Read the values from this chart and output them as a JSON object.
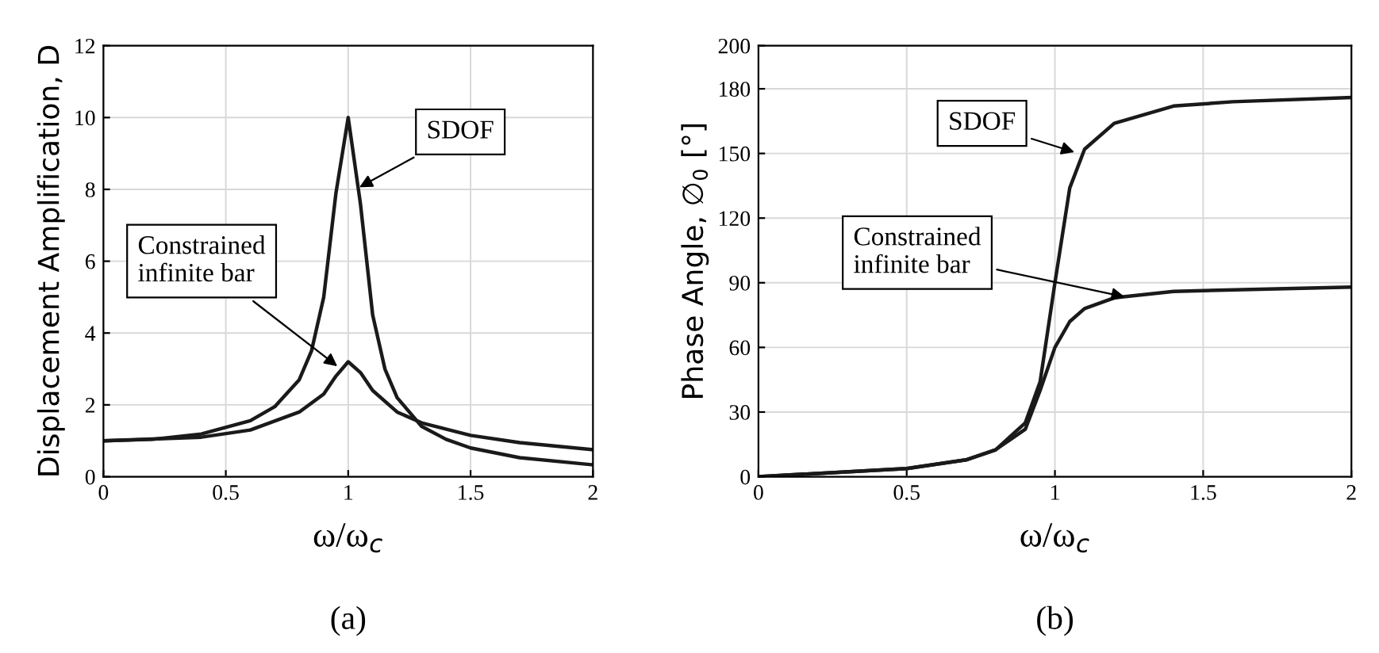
{
  "chart_data": [
    {
      "type": "line",
      "xlabel": "ω/ω$_{c}$",
      "ylabel": "Displacement Amplification, D",
      "xlim": [
        0,
        2
      ],
      "ylim": [
        0,
        12
      ],
      "xticks": [
        0,
        0.5,
        1,
        1.5,
        2
      ],
      "yticks": [
        0,
        2,
        4,
        6,
        8,
        10,
        12
      ],
      "grid": true,
      "legend": false,
      "series": [
        {
          "color": "#1a1a1a",
          "x": [
            0,
            0.2,
            0.4,
            0.6,
            0.7,
            0.8,
            0.85,
            0.9,
            0.95,
            1.0,
            1.05,
            1.1,
            1.15,
            1.2,
            1.3,
            1.4,
            1.5,
            1.7,
            2.0
          ],
          "values": [
            1,
            1.04,
            1.19,
            1.56,
            1.95,
            2.7,
            3.5,
            5.0,
            7.9,
            10,
            7.6,
            4.5,
            3.0,
            2.2,
            1.4,
            1.04,
            0.8,
            0.53,
            0.33
          ]
        },
        {
          "color": "#1a1a1a",
          "x": [
            0,
            0.4,
            0.6,
            0.8,
            0.9,
            0.95,
            1.0,
            1.05,
            1.1,
            1.2,
            1.3,
            1.5,
            1.7,
            2.0
          ],
          "values": [
            1,
            1.1,
            1.3,
            1.8,
            2.3,
            2.8,
            3.2,
            2.9,
            2.4,
            1.8,
            1.5,
            1.15,
            0.95,
            0.75
          ]
        }
      ],
      "annotations": [
        {
          "text": "SDOF",
          "x": 1.03,
          "y": 8
        },
        {
          "text": "Constrained\ninfinite bar",
          "x": 0.97,
          "y": 3
        },
        "(a)"
      ]
    },
    {
      "type": "line",
      "xlabel": "ω/ω$_{c}$",
      "ylabel": "Phase Angle, ∅$_{0}$ [°]",
      "xlim": [
        0,
        2
      ],
      "ylim": [
        0,
        200
      ],
      "xticks": [
        0,
        0.5,
        1,
        1.5,
        2
      ],
      "yticks": [
        0,
        30,
        60,
        90,
        120,
        150,
        180,
        200
      ],
      "grid": true,
      "legend": false,
      "series": [
        {
          "color": "#1a1a1a",
          "x": [
            0,
            0.5,
            0.7,
            0.8,
            0.9,
            0.95,
            1.0,
            1.05,
            1.1,
            1.2,
            1.4,
            1.6,
            2.0
          ],
          "values": [
            0,
            3.8,
            7.8,
            12.5,
            25,
            44,
            90,
            134,
            152,
            164,
            172,
            174,
            176
          ]
        },
        {
          "color": "#1a1a1a",
          "x": [
            0,
            0.5,
            0.7,
            0.8,
            0.9,
            0.95,
            1.0,
            1.05,
            1.1,
            1.2,
            1.4,
            2.0
          ],
          "values": [
            0,
            3.8,
            7.8,
            12.5,
            22,
            40,
            60,
            72,
            78,
            83,
            86,
            88
          ]
        }
      ],
      "annotations": [
        {
          "text": "SDOF",
          "x": 1.08,
          "y": 150
        },
        {
          "text": "Constrained\ninfinite bar",
          "x": 1.25,
          "y": 83
        },
        "(b)"
      ]
    }
  ]
}
